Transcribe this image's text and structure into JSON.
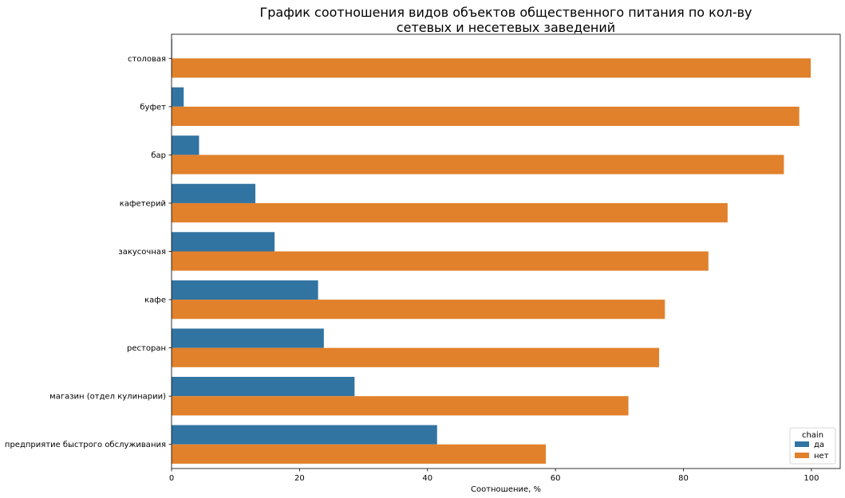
{
  "chart_data": {
    "type": "bar",
    "orientation": "horizontal",
    "title": "График соотношения видов объектов общественного питания по кол-ву\nсетевых и несетевых заведений",
    "xlabel": "Соотношение, %",
    "ylabel": "",
    "xlim": [
      0,
      104.5
    ],
    "xticks": [
      0,
      20,
      40,
      60,
      80,
      100
    ],
    "grid": false,
    "legend": {
      "title": "chain",
      "placement": "lower-right"
    },
    "categories": [
      "столовая",
      "буфет",
      "бар",
      "кафетерий",
      "закусочная",
      "кафе",
      "ресторан",
      "магазин (отдел кулинарии)",
      "предприятие быстрого обслуживания"
    ],
    "series": [
      {
        "name": "да",
        "color": "#3274a1",
        "values": [
          0.1,
          1.9,
          4.3,
          13.1,
          16.1,
          22.9,
          23.8,
          28.6,
          41.5
        ]
      },
      {
        "name": "нет",
        "color": "#e1812c",
        "values": [
          99.9,
          98.1,
          95.7,
          86.9,
          83.9,
          77.1,
          76.2,
          71.4,
          58.5
        ]
      }
    ]
  }
}
